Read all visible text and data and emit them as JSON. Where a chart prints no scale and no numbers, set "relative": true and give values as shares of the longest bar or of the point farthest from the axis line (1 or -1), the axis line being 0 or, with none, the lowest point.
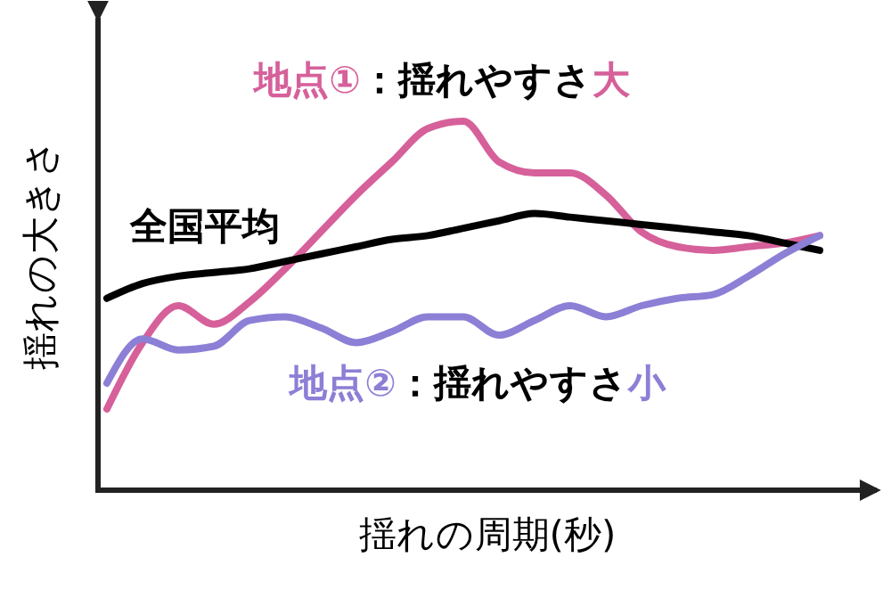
{
  "chart_data": {
    "type": "line",
    "relative": true,
    "xlabel": "揺れの周期(秒)",
    "ylabel": "揺れの大きさ",
    "categories": [
      null,
      null,
      null,
      null,
      null,
      null,
      null,
      null,
      null,
      null,
      null,
      null,
      null,
      null,
      null,
      null,
      null,
      null,
      null,
      null,
      null
    ],
    "series": [
      {
        "name": "地点①：揺れやすさ大",
        "color": "#d6609a",
        "values": [
          0.22,
          0.4,
          0.5,
          0.45,
          0.51,
          0.6,
          0.7,
          0.8,
          0.89,
          0.98,
          1,
          0.89,
          0.86,
          0.86,
          0.8,
          0.7,
          0.66,
          0.65,
          0.66,
          0.67,
          0.69
        ]
      },
      {
        "name": "全国平均",
        "color": "#000000",
        "values": [
          0.52,
          0.56,
          0.58,
          0.59,
          0.6,
          0.62,
          0.64,
          0.66,
          0.68,
          0.69,
          0.71,
          0.73,
          0.75,
          0.74,
          0.73,
          0.72,
          0.71,
          0.7,
          0.69,
          0.67,
          0.65
        ]
      },
      {
        "name": "地点②：揺れやすさ小",
        "color": "#8c7fd6",
        "values": [
          0.29,
          0.41,
          0.38,
          0.39,
          0.46,
          0.47,
          0.44,
          0.4,
          0.43,
          0.47,
          0.47,
          0.42,
          0.46,
          0.5,
          0.47,
          0.5,
          0.52,
          0.53,
          0.58,
          0.64,
          0.69
        ]
      }
    ]
  }
}
